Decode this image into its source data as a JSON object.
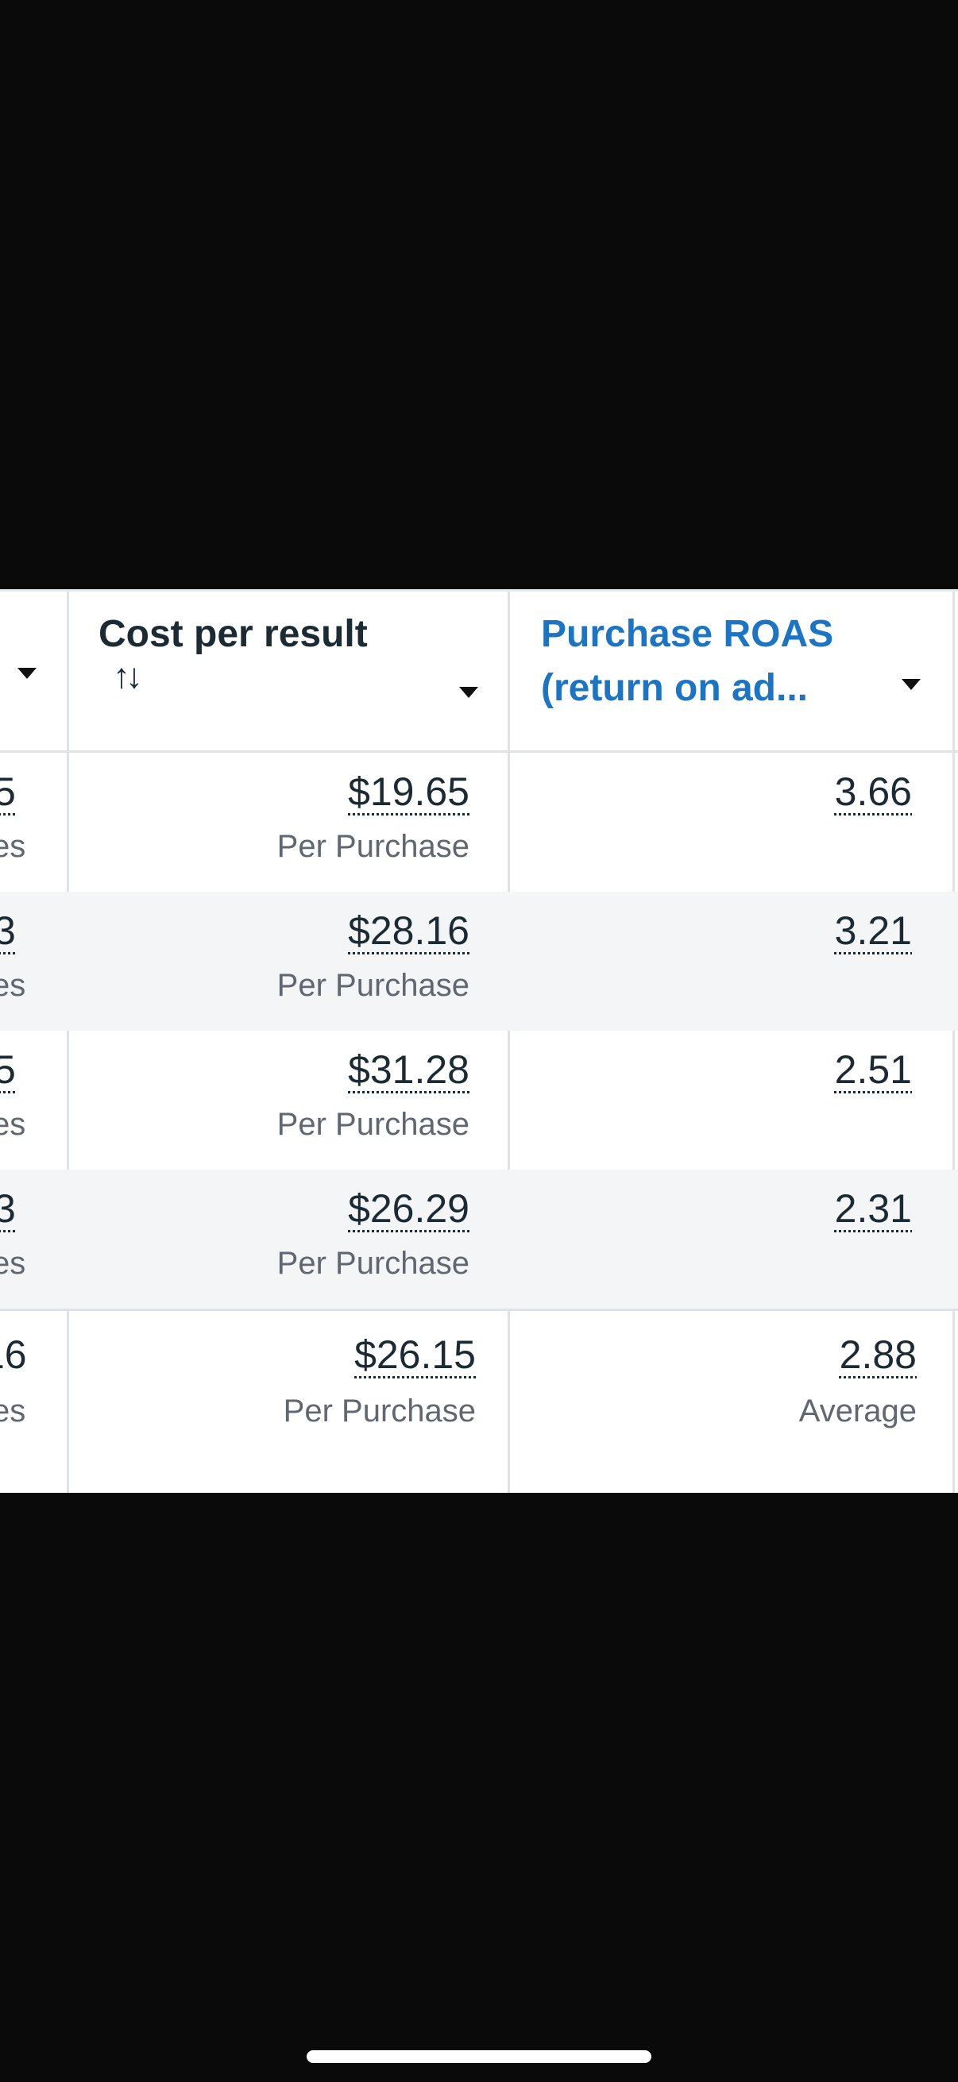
{
  "header": {
    "cost_per_result": "Cost per result",
    "roas_line1": "Purchase ROAS",
    "roas_line2": "(return on ad...",
    "sort_glyph": "↑↓"
  },
  "rows": [
    {
      "left_value": "5",
      "left_sub": "es",
      "cost": "$19.65",
      "cost_sub": "Per Purchase",
      "roas": "3.66"
    },
    {
      "left_value": "3",
      "left_sub": "es",
      "cost": "$28.16",
      "cost_sub": "Per Purchase",
      "roas": "3.21"
    },
    {
      "left_value": "5",
      "left_sub": "es",
      "cost": "$31.28",
      "cost_sub": "Per Purchase",
      "roas": "2.51"
    },
    {
      "left_value": "3",
      "left_sub": "es",
      "cost": "$26.29",
      "cost_sub": "Per Purchase",
      "roas": "2.31"
    }
  ],
  "total": {
    "left_value": "16",
    "left_sub": "es",
    "cost": "$26.15",
    "cost_sub": "Per Purchase",
    "roas": "2.88",
    "roas_sub": "Average"
  },
  "colors": {
    "accent_blue": "#1b74c4",
    "text_dark": "#1c2b33",
    "text_muted": "#606770"
  }
}
